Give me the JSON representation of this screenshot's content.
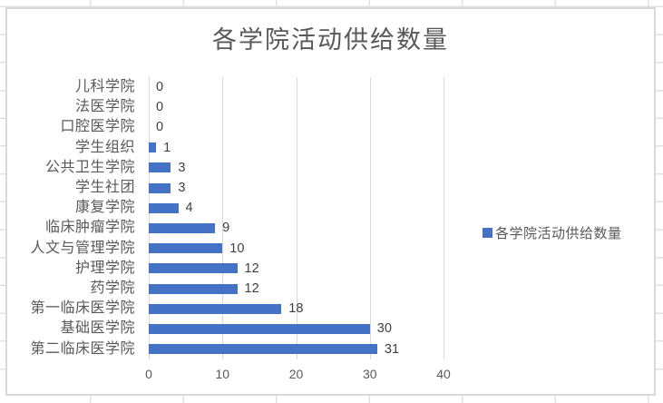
{
  "chart_data": {
    "type": "bar",
    "orientation": "horizontal",
    "title": "各学院活动供给数量",
    "categories": [
      "儿科学院",
      "法医学院",
      "口腔医学院",
      "学生组织",
      "公共卫生学院",
      "学生社团",
      "康复学院",
      "临床肿瘤学院",
      "人文与管理学院",
      "护理学院",
      "药学院",
      "第一临床医学院",
      "基础医学院",
      "第二临床医学院"
    ],
    "series": [
      {
        "name": "各学院活动供给数量",
        "values": [
          0,
          0,
          0,
          1,
          3,
          3,
          4,
          9,
          10,
          12,
          12,
          18,
          30,
          31
        ]
      }
    ],
    "data_labels": [
      0,
      0,
      0,
      1,
      3,
      3,
      4,
      9,
      10,
      12,
      12,
      18,
      30,
      31
    ],
    "xlabel": "",
    "ylabel": "",
    "xlim": [
      0,
      40
    ],
    "xticks": [
      0,
      10,
      20,
      30,
      40
    ],
    "grid": "vertical-major",
    "legend_position": "right",
    "colors": {
      "bar": "#4472C4",
      "gridline": "#D9D9D9",
      "title_text": "#595959",
      "axis_text": "#595959",
      "data_label_text": "#404040",
      "chart_border": "#D9D9D9"
    }
  }
}
